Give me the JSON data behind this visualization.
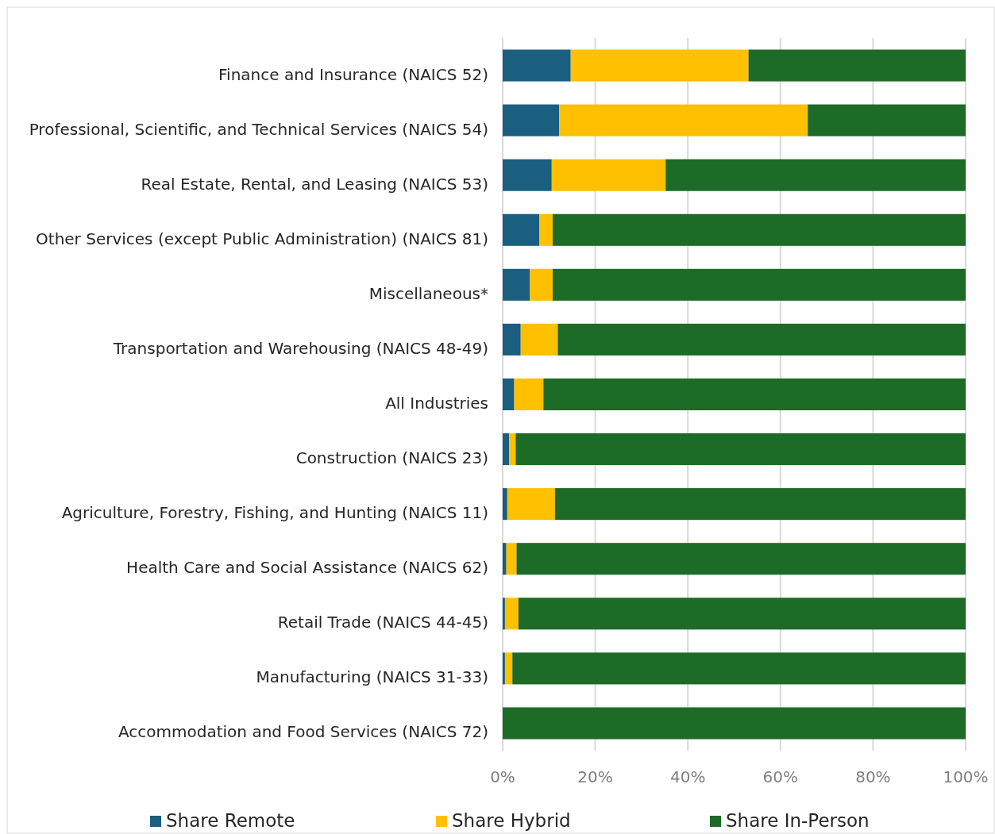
{
  "chart_data": {
    "type": "bar",
    "orientation": "horizontal",
    "stacked": true,
    "categories": [
      "Finance and Insurance (NAICS 52)",
      "Professional, Scientific, and Technical Services (NAICS 54)",
      "Real Estate, Rental, and Leasing (NAICS 53)",
      "Other Services (except Public Administration) (NAICS 81)",
      "Miscellaneous*",
      "Transportation and Warehousing (NAICS 48-49)",
      "All Industries",
      "Construction (NAICS 23)",
      "Agriculture, Forestry, Fishing, and Hunting (NAICS 11)",
      "Health Care and Social Assistance (NAICS 62)",
      "Retail Trade (NAICS 44-45)",
      "Manufacturing (NAICS 31-33)",
      "Accommodation and Food Services (NAICS 72)"
    ],
    "series": [
      {
        "name": "Share Remote",
        "color": "#1a5e80",
        "values": [
          14.7,
          12.2,
          10.6,
          7.9,
          5.9,
          3.9,
          2.5,
          1.4,
          1.0,
          0.8,
          0.5,
          0.5,
          0
        ]
      },
      {
        "name": "Share Hybrid",
        "color": "#ffc000",
        "values": [
          38.4,
          53.7,
          24.6,
          2.9,
          4.9,
          8.0,
          6.3,
          1.4,
          10.3,
          2.2,
          2.9,
          1.6,
          0
        ]
      },
      {
        "name": "Share In-Person",
        "color": "#1c6b26",
        "values": [
          46.9,
          34.1,
          64.8,
          89.2,
          89.2,
          88.1,
          91.2,
          97.2,
          88.7,
          97.0,
          96.6,
          97.9,
          100
        ]
      }
    ],
    "xlim": [
      0,
      100
    ],
    "xticks": [
      {
        "value": 0,
        "label": "0%"
      },
      {
        "value": 20,
        "label": "20%"
      },
      {
        "value": 40,
        "label": "40%"
      },
      {
        "value": 60,
        "label": "60%"
      },
      {
        "value": 80,
        "label": "80%"
      },
      {
        "value": 100,
        "label": "100%"
      }
    ],
    "grid": "x",
    "legend": "bottom"
  }
}
